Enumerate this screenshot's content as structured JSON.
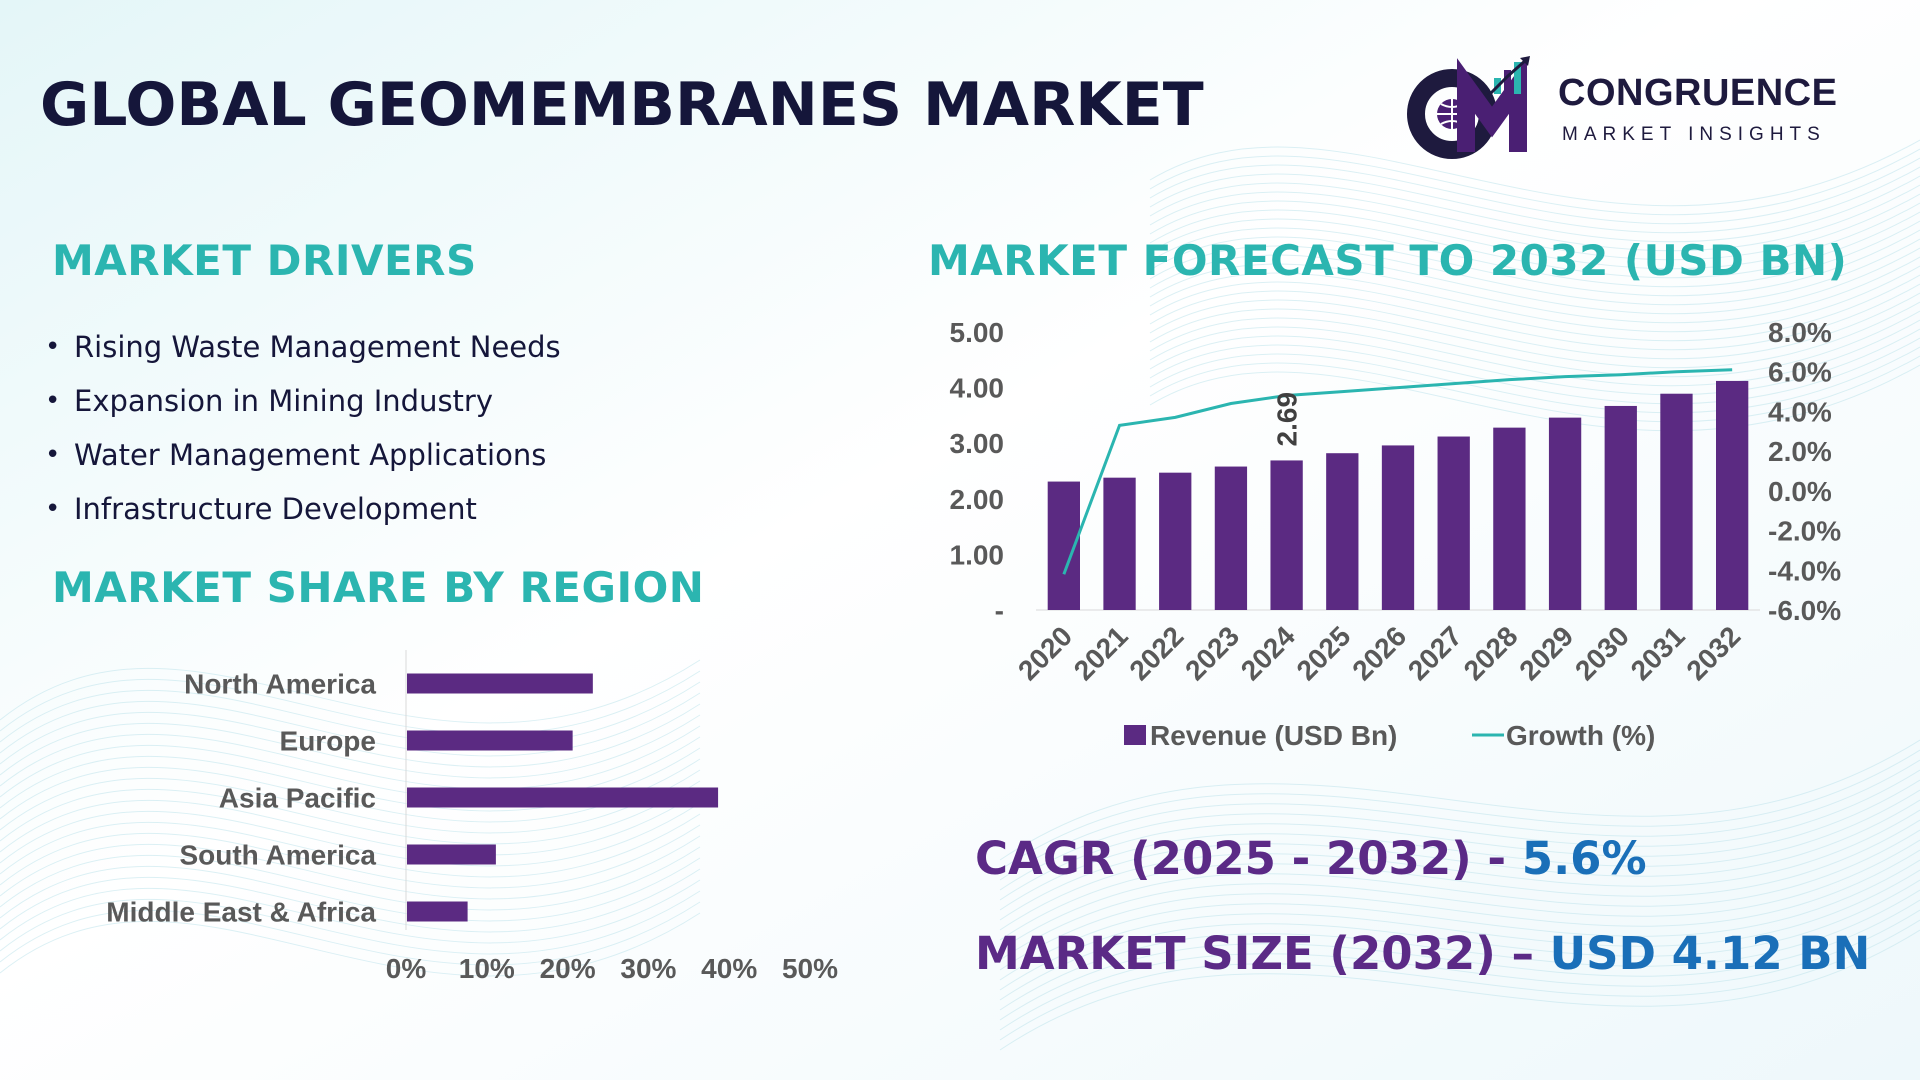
{
  "title": "GLOBAL GEOMEMBRANES MARKET",
  "logo": {
    "monogram": "CM",
    "brand": "CONGRUENCE",
    "tagline": "MARKET INSIGHTS",
    "colors": {
      "purple": "#4a1f73",
      "navy": "#1e1a3e",
      "teal": "#2bb5b0"
    }
  },
  "sections": {
    "drivers_title": "MARKET DRIVERS",
    "region_title": "MARKET SHARE BY REGION",
    "forecast_title": "MARKET FORECAST TO 2032 (USD BN)"
  },
  "drivers": [
    "Rising Waste Management Needs",
    "Expansion in Mining Industry",
    "Water Management Applications",
    "Infrastructure Development"
  ],
  "stats": {
    "cagr_label": "CAGR (2025 - 2032)",
    "cagr_sep": " - ",
    "cagr_value": "5.6%",
    "size_label": "MARKET SIZE (2032)",
    "size_sep": " – ",
    "size_value": "USD 4.12 BN"
  },
  "colors": {
    "bar": "#5b2a82",
    "line": "#2bb5b0",
    "title_teal": "#2bb5b0",
    "stat_purple": "#5b2a86",
    "stat_blue": "#1a6fb8",
    "axis_text": "#595959"
  },
  "chart_data": [
    {
      "type": "bar",
      "orientation": "horizontal",
      "categories": [
        "North America",
        "Europe",
        "Asia Pacific",
        "South America",
        "Middle East & Africa"
      ],
      "values": [
        23,
        20.5,
        38.5,
        11,
        7.5
      ],
      "xlim": [
        0,
        50
      ],
      "xticks": [
        "0%",
        "10%",
        "20%",
        "30%",
        "40%",
        "50%"
      ],
      "grid": false,
      "legend": "none"
    },
    {
      "type": "bar",
      "categories": [
        "2020",
        "2021",
        "2022",
        "2023",
        "2024",
        "2025",
        "2026",
        "2027",
        "2028",
        "2029",
        "2030",
        "2031",
        "2032"
      ],
      "series": [
        {
          "name": "Revenue (USD Bn)",
          "type": "bar",
          "axis": "left",
          "values": [
            2.31,
            2.38,
            2.47,
            2.58,
            2.69,
            2.82,
            2.96,
            3.12,
            3.28,
            3.46,
            3.67,
            3.89,
            4.12
          ]
        },
        {
          "name": "Growth (%)",
          "type": "line",
          "axis": "right",
          "values": [
            -4.2,
            3.3,
            3.7,
            4.4,
            4.8,
            5.0,
            5.2,
            5.4,
            5.6,
            5.75,
            5.85,
            6.0,
            6.1
          ]
        }
      ],
      "data_labels": [
        {
          "category": "2024",
          "text": "2.69"
        }
      ],
      "ylim_left": [
        0,
        5
      ],
      "yticks_left": [
        "-",
        "1.00",
        "2.00",
        "3.00",
        "4.00",
        "5.00"
      ],
      "ylim_right": [
        -6,
        8
      ],
      "yticks_right": [
        "-6.0%",
        "-4.0%",
        "-2.0%",
        "0.0%",
        "2.0%",
        "4.0%",
        "6.0%",
        "8.0%"
      ],
      "grid": false,
      "legend": "bottom-center"
    }
  ]
}
